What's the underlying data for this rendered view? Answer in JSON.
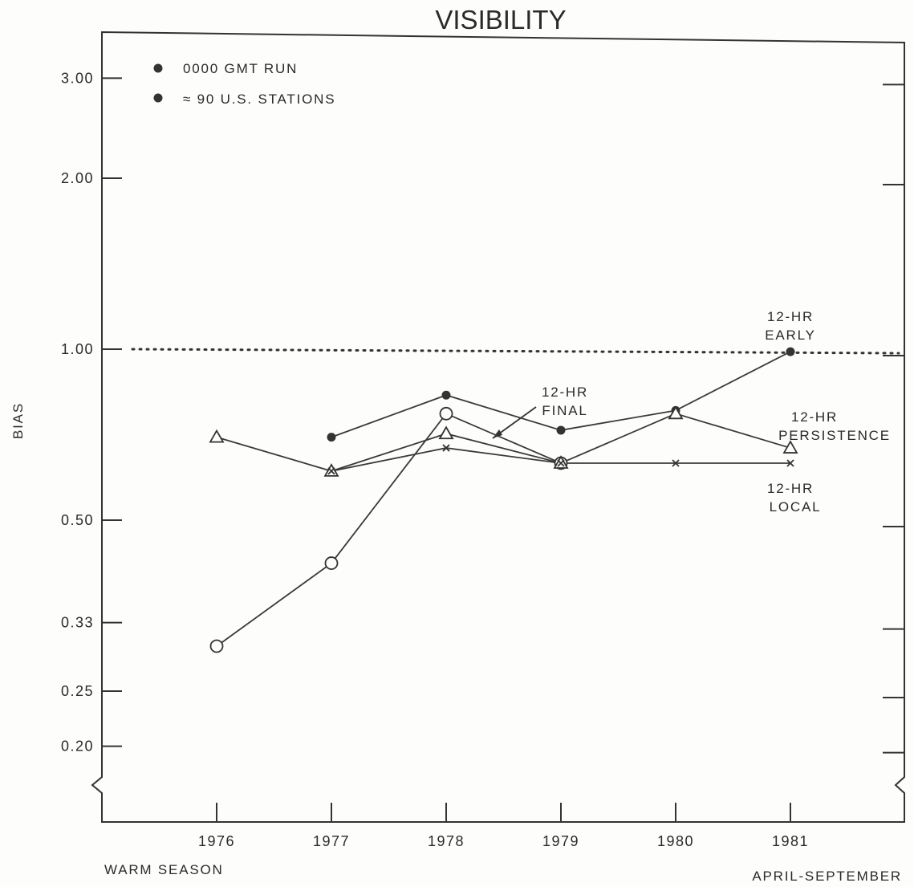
{
  "chart_data": {
    "type": "line",
    "title": "VISIBILITY",
    "ylabel": "BIAS",
    "xlabel_left": "WARM SEASON",
    "xlabel_right": "APRIL-SEPTEMBER",
    "y_scale": "log",
    "ylim": [
      0.2,
      3.0
    ],
    "y_axis_break": true,
    "yticks": [
      "3.00",
      "2.00",
      "1.00",
      "0.50",
      "0.33",
      "0.25",
      "0.20"
    ],
    "categories": [
      "1976",
      "1977",
      "1978",
      "1979",
      "1980",
      "1981"
    ],
    "legend": [
      "0000 GMT RUN",
      "≈ 90 U.S. STATIONS"
    ],
    "legend_position": "top-left",
    "reference_line": {
      "y": 1.0,
      "style": "dotted"
    },
    "series": [
      {
        "name": "12-HR EARLY",
        "marker": "filled-circle",
        "values": [
          null,
          0.7,
          0.83,
          0.72,
          0.78,
          0.99
        ]
      },
      {
        "name": "12-HR FINAL",
        "marker": "open-circle",
        "values": [
          0.3,
          0.42,
          0.77,
          0.63,
          null,
          null
        ]
      },
      {
        "name": "12-HR PERSISTENCE",
        "marker": "triangle",
        "values": [
          0.7,
          0.61,
          0.71,
          0.63,
          0.77,
          0.67
        ]
      },
      {
        "name": "12-HR LOCAL",
        "marker": "x",
        "values": [
          null,
          0.61,
          0.67,
          0.63,
          0.63,
          0.63
        ]
      }
    ],
    "annotations": {
      "early": [
        "12-HR",
        "EARLY"
      ],
      "final": [
        "12-HR",
        "FINAL"
      ],
      "persistence": [
        "12-HR",
        "PERSISTENCE"
      ],
      "local": [
        "12-HR",
        "LOCAL"
      ]
    }
  }
}
